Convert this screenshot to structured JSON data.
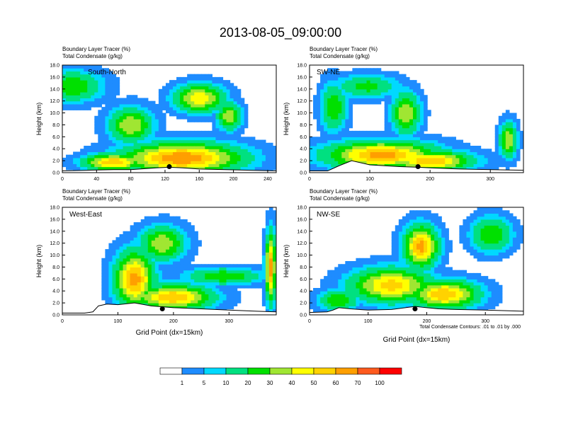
{
  "figure": {
    "title": "2013-08-05_09:00:00",
    "contour_note": "Total Condensate Contours: .01 to .01 by .000"
  },
  "chart_data": [
    {
      "type": "heatmap",
      "title": "South-North",
      "subtitle_lines": [
        "Boundary Layer Tracer   (%)",
        "Total Condensate   (g/kg)"
      ],
      "xlabel": "",
      "ylabel": "Height (km)",
      "xlim": [
        0,
        250
      ],
      "ylim": [
        0,
        18
      ],
      "xticks": [
        0,
        40,
        80,
        120,
        160,
        200,
        240
      ],
      "xtick_labels": [
        "0",
        "40",
        "80",
        "120",
        "160",
        "200",
        "240"
      ],
      "yticks": [
        0,
        2,
        4,
        6,
        8,
        10,
        12,
        14,
        16,
        18
      ],
      "ytick_labels": [
        "0.0",
        "2.0",
        "4.0",
        "6.0",
        "8.0",
        "10.0",
        "12.0",
        "14.0",
        "16.0",
        "18.0"
      ],
      "terrain_x": [
        0,
        30,
        60,
        80,
        100,
        110,
        125,
        140,
        160,
        190,
        220,
        250
      ],
      "terrain_y": [
        0.3,
        0.4,
        0.5,
        0.5,
        0.7,
        0.8,
        0.9,
        0.8,
        0.6,
        0.5,
        0.4,
        0.3
      ],
      "fields": [
        {
          "x": 12,
          "y": 14.5,
          "sx": 30,
          "sy": 2.2,
          "v": 30
        },
        {
          "x": 160,
          "y": 12.5,
          "sx": 25,
          "sy": 2.0,
          "v": 50
        },
        {
          "x": 80,
          "y": 8,
          "sx": 22,
          "sy": 2.5,
          "v": 40
        },
        {
          "x": 195,
          "y": 9.5,
          "sx": 12,
          "sy": 2.0,
          "v": 40
        },
        {
          "x": 140,
          "y": 2.5,
          "sx": 60,
          "sy": 2.2,
          "v": 70
        },
        {
          "x": 60,
          "y": 1.8,
          "sx": 30,
          "sy": 1.2,
          "v": 60
        }
      ],
      "marker_x": 125,
      "marker_y": 1.0
    },
    {
      "type": "heatmap",
      "title": "SW-NE",
      "subtitle_lines": [
        "Boundary Layer Tracer   (%)",
        "Total Condensate   (g/kg)"
      ],
      "xlabel": "",
      "ylabel": "Height (km)",
      "xlim": [
        0,
        355
      ],
      "ylim": [
        0,
        18
      ],
      "xticks": [
        0,
        100,
        200,
        300
      ],
      "xtick_labels": [
        "0",
        "100",
        "200",
        "300"
      ],
      "yticks": [
        0,
        2,
        4,
        6,
        8,
        10,
        12,
        14,
        16,
        18
      ],
      "ytick_labels": [
        "0.0",
        "2.0",
        "4.0",
        "6.0",
        "8.0",
        "10.0",
        "12.0",
        "14.0",
        "16.0",
        "18.0"
      ],
      "terrain_x": [
        0,
        30,
        50,
        70,
        100,
        150,
        180,
        200,
        250,
        300,
        355
      ],
      "terrain_y": [
        0.3,
        0.3,
        1.2,
        2.0,
        1.3,
        1.0,
        0.9,
        0.8,
        0.6,
        0.5,
        0.4
      ],
      "fields": [
        {
          "x": 95,
          "y": 14.5,
          "sx": 45,
          "sy": 1.6,
          "v": 25
        },
        {
          "x": 40,
          "y": 11,
          "sx": 18,
          "sy": 3.5,
          "v": 30
        },
        {
          "x": 160,
          "y": 10,
          "sx": 20,
          "sy": 3.0,
          "v": 40
        },
        {
          "x": 330,
          "y": 5.5,
          "sx": 12,
          "sy": 2.5,
          "v": 40
        },
        {
          "x": 120,
          "y": 3,
          "sx": 80,
          "sy": 2.0,
          "v": 65
        },
        {
          "x": 200,
          "y": 2,
          "sx": 60,
          "sy": 1.5,
          "v": 60
        }
      ],
      "marker_x": 180,
      "marker_y": 1.0
    },
    {
      "type": "heatmap",
      "title": "West-East",
      "subtitle_lines": [
        "Boundary Layer Tracer   (%)",
        "Total Condensate   (g/kg)"
      ],
      "xlabel": "Grid Point (dx=15km)",
      "ylabel": "Height (km)",
      "xlim": [
        0,
        385
      ],
      "ylim": [
        0,
        18
      ],
      "xticks": [
        0,
        100,
        200,
        300
      ],
      "xtick_labels": [
        "0",
        "100",
        "200",
        "300"
      ],
      "yticks": [
        0,
        2,
        4,
        6,
        8,
        10,
        12,
        14,
        16,
        18
      ],
      "ytick_labels": [
        "0.0",
        "2.0",
        "4.0",
        "6.0",
        "8.0",
        "10.0",
        "12.0",
        "14.0",
        "16.0",
        "18.0"
      ],
      "terrain_x": [
        0,
        40,
        55,
        65,
        80,
        100,
        130,
        160,
        200,
        250,
        300,
        350,
        385
      ],
      "terrain_y": [
        0.3,
        0.3,
        0.5,
        1.5,
        1.8,
        1.7,
        2.0,
        1.5,
        1.2,
        1.0,
        0.8,
        0.6,
        0.5
      ],
      "fields": [
        {
          "x": 180,
          "y": 12,
          "sx": 35,
          "sy": 2.5,
          "v": 40
        },
        {
          "x": 290,
          "y": 6.5,
          "sx": 60,
          "sy": 1.2,
          "v": 30
        },
        {
          "x": 375,
          "y": 8,
          "sx": 8,
          "sy": 5.0,
          "v": 65
        },
        {
          "x": 130,
          "y": 6,
          "sx": 30,
          "sy": 4.0,
          "v": 65
        },
        {
          "x": 200,
          "y": 3,
          "sx": 60,
          "sy": 1.8,
          "v": 60
        }
      ],
      "marker_x": 180,
      "marker_y": 1.0
    },
    {
      "type": "heatmap",
      "title": "NW-SE",
      "subtitle_lines": [
        "Boundary Layer Tracer   (%)",
        "Total Condensate   (g/kg)"
      ],
      "xlabel": "Grid Point (dx=15km)",
      "ylabel": "Height (km)",
      "xlim": [
        0,
        365
      ],
      "ylim": [
        0,
        18
      ],
      "xticks": [
        0,
        100,
        200,
        300
      ],
      "xtick_labels": [
        "0",
        "100",
        "200",
        "300"
      ],
      "yticks": [
        0,
        2,
        4,
        6,
        8,
        10,
        12,
        14,
        16,
        18
      ],
      "ytick_labels": [
        "0.0",
        "2.0",
        "4.0",
        "6.0",
        "8.0",
        "10.0",
        "12.0",
        "14.0",
        "16.0",
        "18.0"
      ],
      "terrain_x": [
        0,
        30,
        40,
        50,
        70,
        100,
        140,
        180,
        200,
        220,
        250,
        300,
        365
      ],
      "terrain_y": [
        0.4,
        0.5,
        0.8,
        1.2,
        1.0,
        0.8,
        0.9,
        1.4,
        1.2,
        1.0,
        0.9,
        0.8,
        0.6
      ],
      "fields": [
        {
          "x": 310,
          "y": 13.5,
          "sx": 30,
          "sy": 2.5,
          "v": 30
        },
        {
          "x": 190,
          "y": 11.5,
          "sx": 25,
          "sy": 3.0,
          "v": 65
        },
        {
          "x": 140,
          "y": 5,
          "sx": 60,
          "sy": 2.5,
          "v": 55
        },
        {
          "x": 230,
          "y": 3.5,
          "sx": 50,
          "sy": 2.0,
          "v": 60
        },
        {
          "x": 50,
          "y": 2.5,
          "sx": 30,
          "sy": 1.5,
          "v": 30
        }
      ],
      "marker_x": 180,
      "marker_y": 1.0
    }
  ],
  "colorbar": {
    "labels": [
      "1",
      "5",
      "10",
      "20",
      "30",
      "40",
      "50",
      "60",
      "70",
      "100"
    ],
    "colors": [
      "#ffffff",
      "#1e8cff",
      "#00d9ff",
      "#00e080",
      "#00e000",
      "#a0e632",
      "#ffff00",
      "#ffd200",
      "#ff9f00",
      "#ff5a1e",
      "#ff0000"
    ]
  }
}
